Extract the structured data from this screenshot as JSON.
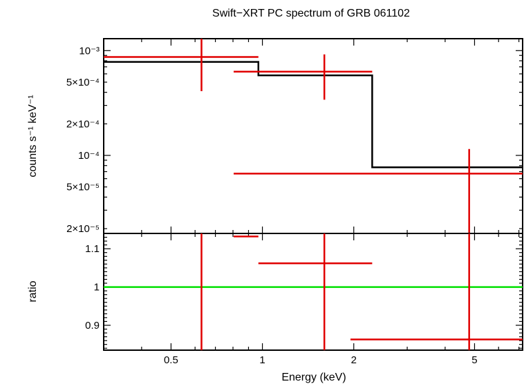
{
  "chart_data": {
    "type": "line",
    "title": "Swift−XRT PC spectrum of GRB 061102",
    "xlabel": "Energy (keV)",
    "x_scale": "log",
    "xlim": [
      0.3,
      7.2
    ],
    "x_ticks": [
      {
        "value": 0.5,
        "label": "0.5"
      },
      {
        "value": 1,
        "label": "1"
      },
      {
        "value": 2,
        "label": "2"
      },
      {
        "value": 5,
        "label": "5"
      }
    ],
    "panels": [
      {
        "id": "spectrum",
        "ylabel": "counts s⁻¹ keV⁻¹",
        "y_scale": "log",
        "ylim": [
          1.8e-05,
          0.0013
        ],
        "y_ticks": [
          {
            "value": 0.001,
            "label": "10⁻³"
          },
          {
            "value": 0.0005,
            "label": "5×10⁻⁴"
          },
          {
            "value": 0.0002,
            "label": "2×10⁻⁴"
          },
          {
            "value": 0.0001,
            "label": "10⁻⁴"
          },
          {
            "value": 5e-05,
            "label": "5×10⁻⁵"
          },
          {
            "value": 2e-05,
            "label": "2×10⁻⁵"
          }
        ],
        "data": {
          "color": "#e00000",
          "points": [
            {
              "x": 0.63,
              "x_lo": 0.3,
              "x_hi": 0.97,
              "y": 0.00087,
              "y_lo": 0.00041,
              "y_hi": 0.0013
            },
            {
              "x": 1.6,
              "x_lo": 0.97,
              "x_hi": 2.3,
              "y": 0.00063,
              "y_lo": 0.00034,
              "y_hi": 0.00092
            },
            {
              "x": 4.8,
              "x_lo": 2.3,
              "x_hi": 7.2,
              "y": 6.7e-05,
              "y_lo": 1.8e-05,
              "y_hi": 0.000115
            }
          ]
        },
        "model": {
          "color": "#000000",
          "steps": [
            {
              "x_lo": 0.3,
              "x_hi": 0.97,
              "y": 0.00078
            },
            {
              "x_lo": 0.97,
              "x_hi": 2.3,
              "y": 0.00058
            },
            {
              "x_lo": 2.3,
              "x_hi": 7.2,
              "y": 7.7e-05
            }
          ]
        }
      },
      {
        "id": "ratio",
        "ylabel": "ratio",
        "y_scale": "linear",
        "ylim": [
          0.835,
          1.14
        ],
        "y_ticks": [
          {
            "value": 0.9,
            "label": "0.9"
          },
          {
            "value": 1.0,
            "label": "1"
          },
          {
            "value": 1.1,
            "label": "1.1"
          }
        ],
        "reference_line": {
          "y": 1.0,
          "color": "#00e000"
        },
        "data": {
          "color": "#e00000",
          "points": [
            {
              "x": 0.63,
              "x_lo": 0.3,
              "x_hi": 0.97,
              "y": 1.132,
              "y_lo": 0.835,
              "y_hi": 1.14
            },
            {
              "x": 1.6,
              "x_lo": 0.97,
              "x_hi": 2.3,
              "y": 1.062,
              "y_lo": 0.835,
              "y_hi": 1.14
            },
            {
              "x": 4.8,
              "x_lo": 2.3,
              "x_hi": 7.2,
              "y": 0.863,
              "y_lo": 0.835,
              "y_hi": 1.14
            }
          ]
        }
      }
    ]
  }
}
